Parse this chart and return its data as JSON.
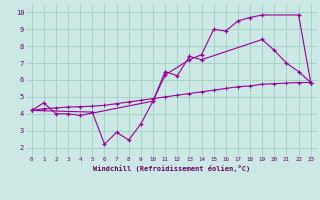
{
  "xlabel": "Windchill (Refroidissement éolien,°C)",
  "bg_color": "#cce8e4",
  "line_color": "#990099",
  "grid_color": "#99ccbb",
  "xlim": [
    -0.5,
    23.5
  ],
  "ylim": [
    1.5,
    10.5
  ],
  "xticks": [
    0,
    1,
    2,
    3,
    4,
    5,
    6,
    7,
    8,
    9,
    10,
    11,
    12,
    13,
    14,
    15,
    16,
    17,
    18,
    19,
    20,
    21,
    22,
    23
  ],
  "yticks": [
    2,
    3,
    4,
    5,
    6,
    7,
    8,
    9,
    10
  ],
  "line1_x": [
    0,
    1,
    2,
    3,
    4,
    10,
    11,
    13,
    14,
    15,
    16,
    17,
    18,
    19,
    22,
    23
  ],
  "line1_y": [
    4.2,
    4.65,
    4.0,
    4.0,
    3.9,
    4.75,
    6.3,
    7.2,
    7.5,
    9.0,
    8.9,
    9.5,
    9.7,
    9.85,
    9.85,
    5.85
  ],
  "line2_x": [
    0,
    5,
    6,
    7,
    8,
    9,
    10,
    11,
    12,
    13,
    14,
    19,
    20,
    21,
    22,
    23
  ],
  "line2_y": [
    4.2,
    4.1,
    2.2,
    2.9,
    2.45,
    3.4,
    4.75,
    6.5,
    6.25,
    7.4,
    7.2,
    8.4,
    7.75,
    7.0,
    6.5,
    5.85
  ],
  "line3_x": [
    0,
    1,
    2,
    3,
    4,
    5,
    6,
    7,
    8,
    9,
    10,
    11,
    12,
    13,
    14,
    15,
    16,
    17,
    18,
    19,
    20,
    21,
    22,
    23
  ],
  "line3_y": [
    4.2,
    4.3,
    4.35,
    4.4,
    4.42,
    4.45,
    4.5,
    4.6,
    4.7,
    4.8,
    4.9,
    5.0,
    5.1,
    5.2,
    5.3,
    5.4,
    5.5,
    5.6,
    5.65,
    5.75,
    5.78,
    5.82,
    5.85,
    5.85
  ]
}
